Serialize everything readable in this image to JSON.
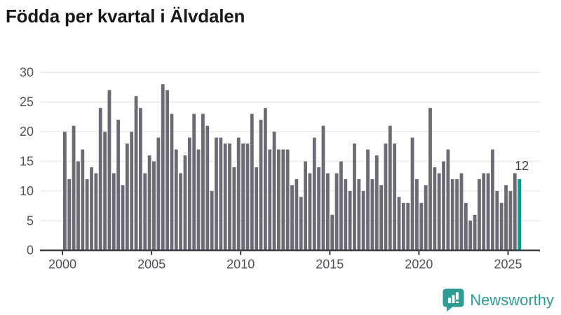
{
  "title": "Födda per kvartal i Älvdalen",
  "branding": {
    "name": "Newsworthy",
    "icon": "bar-chart-speech-bubble-icon",
    "color": "#2f9c94"
  },
  "colors": {
    "bar": "#6b6b75",
    "highlight": "#009e94",
    "grid": "#e9e9e9",
    "axis": "#3e3e47",
    "tick_label": "#53535c",
    "value_label": "#3f3f47",
    "title": "#18181b"
  },
  "chart_data": {
    "type": "bar",
    "title": "Födda per kvartal i Älvdalen",
    "x_start": "2000-Q1",
    "x_end": "2025-Q3",
    "x_tick_labels": [
      "2000",
      "2005",
      "2010",
      "2015",
      "2020",
      "2025"
    ],
    "x_tick_quarter_positions": [
      0,
      20,
      40,
      60,
      80,
      100
    ],
    "y_ticks": [
      0,
      5,
      10,
      15,
      20,
      25,
      30
    ],
    "ylim": [
      0,
      30
    ],
    "grid": "horizontal-light",
    "legend": "none",
    "highlight_index": 102,
    "highlight_value_label": "12",
    "series": [
      {
        "name": "Födda per kvartal",
        "values": [
          20,
          12,
          21,
          15,
          17,
          12,
          14,
          13,
          24,
          20,
          27,
          13,
          22,
          11,
          18,
          20,
          26,
          24,
          13,
          16,
          15,
          19,
          28,
          27,
          23,
          17,
          13,
          16,
          19,
          23,
          17,
          23,
          21,
          10,
          19,
          19,
          18,
          18,
          14,
          19,
          18,
          18,
          23,
          14,
          22,
          24,
          17,
          20,
          17,
          17,
          17,
          11,
          12,
          9,
          15,
          13,
          19,
          14,
          21,
          13,
          6,
          13,
          15,
          12,
          10,
          18,
          12,
          10,
          17,
          12,
          16,
          11,
          18,
          21,
          18,
          9,
          8,
          8,
          19,
          12,
          8,
          11,
          24,
          14,
          13,
          15,
          17,
          12,
          12,
          13,
          8,
          5,
          6,
          12,
          13,
          13,
          17,
          10,
          8,
          11,
          10,
          13,
          12
        ]
      }
    ]
  }
}
